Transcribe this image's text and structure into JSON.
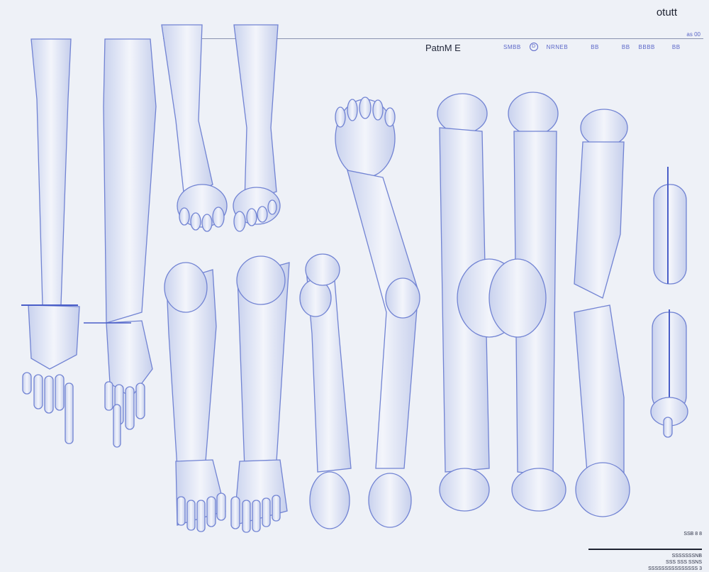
{
  "header": {
    "corner_title": "otutt",
    "panel_label": "PatnM E",
    "tiny_marks": [
      "SMBB",
      "D",
      "NRNEB",
      "BB",
      "BB",
      "BBBB",
      "BB"
    ],
    "corner_mark": "as 00"
  },
  "legend": {
    "top_line": "SSB 8 8",
    "lines": [
      "SSSSSSSNB",
      "SSS SSS SSNS",
      "SSSSSSSSSSSSSSS 3"
    ]
  },
  "palette": {
    "background": "#eef1f7",
    "limb_fill": "#dfe5f4",
    "limb_stroke": "#6e7fd0",
    "accent": "#4a5ec8"
  }
}
